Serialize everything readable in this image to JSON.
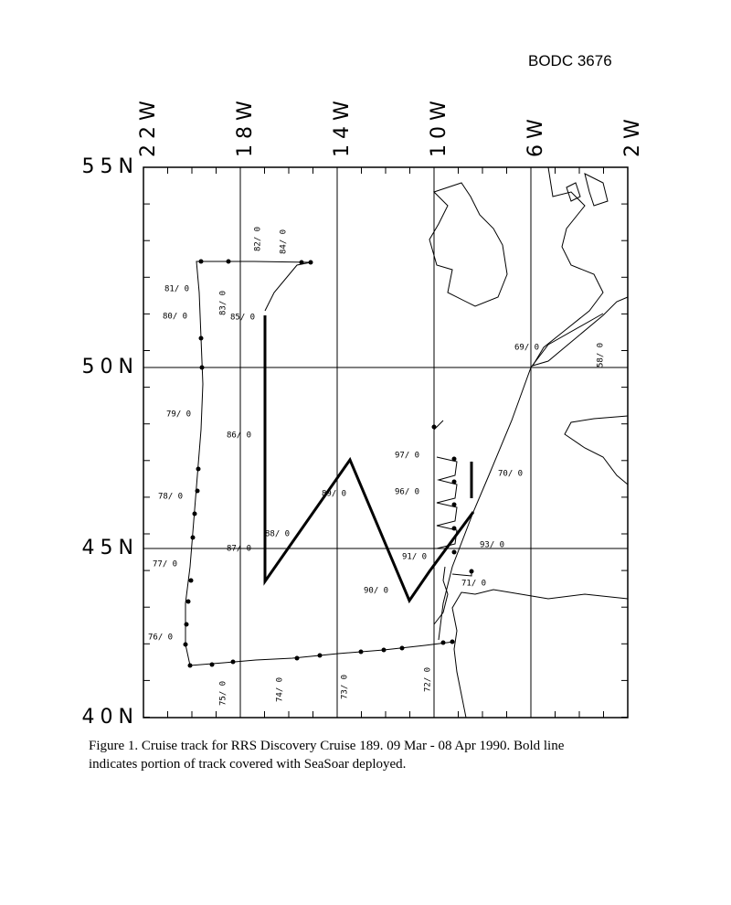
{
  "header": {
    "code": "BODC 3676"
  },
  "map": {
    "lon_labels": [
      "22W",
      "18W",
      "14W",
      "10W",
      "6W",
      "2W"
    ],
    "lat_labels": [
      "55N",
      "50N",
      "45N",
      "40N"
    ],
    "station_labels": [
      "81/ 0",
      "80/ 0",
      "79/ 0",
      "78/ 0",
      "77/ 0",
      "76/ 0",
      "75/ 0",
      "74/ 0",
      "73/ 0",
      "72/ 0",
      "82/ 0",
      "84/ 0",
      "83/ 0",
      "85/ 0",
      "86/ 0",
      "87/ 0",
      "88/ 0",
      "89/ 0",
      "90/ 0",
      "91/ 0",
      "97/ 0",
      "96/ 0",
      "93/ 0",
      "71/ 0",
      "70/ 0",
      "69/ 0",
      "58/ 0"
    ]
  },
  "caption": {
    "lines": [
      "Figure 1.  Cruise track for RRS Discovery Cruise 189. 09 Mar - 08 Apr 1990. Bold line",
      "indicates portion of track covered with SeaSoar deployed."
    ]
  }
}
